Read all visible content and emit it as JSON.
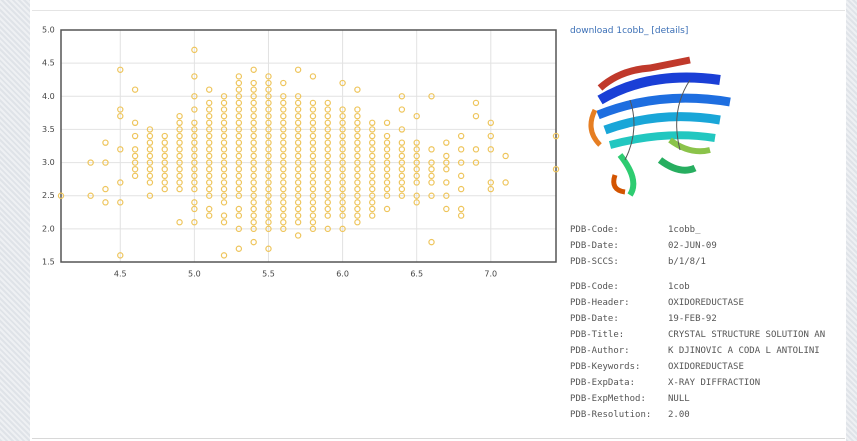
{
  "chart_data": {
    "type": "scatter",
    "color": "#eec55c",
    "grid": true,
    "xlim": [
      4.1,
      7.44
    ],
    "ylim": [
      1.5,
      5.0
    ],
    "xticks": [
      4.5,
      {
        "value": 5,
        "label": "5.0"
      },
      5.5,
      {
        "value": 6,
        "label": "6.0"
      },
      6.5,
      {
        "value": 7,
        "label": "7.0"
      }
    ],
    "yticks": [
      1.5,
      {
        "value": 2,
        "label": "2.0"
      },
      2.5,
      {
        "value": 3,
        "label": "3.0"
      },
      3.5,
      {
        "value": 4,
        "label": "4.0"
      },
      4.5,
      {
        "value": 5,
        "label": "5.0"
      }
    ],
    "points": [
      {
        "x": 4.1,
        "y": [
          2.5
        ]
      },
      {
        "x": 4.3,
        "y": [
          2.5,
          3.0
        ]
      },
      {
        "x": 4.4,
        "y": [
          2.4,
          2.6,
          3.0,
          3.3
        ]
      },
      {
        "x": 4.5,
        "y": [
          1.6,
          2.4,
          2.7,
          3.2,
          3.7,
          3.8,
          4.4
        ]
      },
      {
        "x": 4.6,
        "y": [
          2.8,
          2.9,
          3.0,
          3.1,
          3.2,
          3.4,
          3.6,
          4.1
        ]
      },
      {
        "x": 4.7,
        "y": [
          2.5,
          2.7,
          2.8,
          2.9,
          3.0,
          3.1,
          3.2,
          3.3,
          3.4,
          3.5
        ]
      },
      {
        "x": 4.8,
        "y": [
          2.6,
          2.7,
          2.8,
          2.9,
          3.0,
          3.1,
          3.2,
          3.3,
          3.4
        ]
      },
      {
        "x": 4.9,
        "y": [
          2.1,
          2.6,
          2.7,
          2.8,
          2.9,
          3.0,
          3.1,
          3.2,
          3.3,
          3.4,
          3.5,
          3.6,
          3.7
        ]
      },
      {
        "x": 5.0,
        "y": [
          2.1,
          2.3,
          2.4,
          2.6,
          2.7,
          2.8,
          2.9,
          3.0,
          3.1,
          3.2,
          3.3,
          3.4,
          3.5,
          3.6,
          3.8,
          4.0,
          4.3,
          4.7
        ]
      },
      {
        "x": 5.1,
        "y": [
          2.2,
          2.3,
          2.5,
          2.6,
          2.7,
          2.8,
          2.9,
          3.0,
          3.1,
          3.2,
          3.3,
          3.4,
          3.5,
          3.6,
          3.7,
          3.8,
          3.9,
          4.1
        ]
      },
      {
        "x": 5.2,
        "y": [
          1.6,
          2.1,
          2.2,
          2.4,
          2.5,
          2.6,
          2.7,
          2.8,
          2.9,
          3.0,
          3.1,
          3.2,
          3.3,
          3.4,
          3.5,
          3.6,
          3.7,
          3.8,
          3.9,
          4.0
        ]
      },
      {
        "x": 5.3,
        "y": [
          1.7,
          2.0,
          2.2,
          2.3,
          2.5,
          2.6,
          2.7,
          2.8,
          2.9,
          3.0,
          3.1,
          3.2,
          3.3,
          3.4,
          3.5,
          3.6,
          3.7,
          3.8,
          3.9,
          4.0,
          4.1,
          4.2,
          4.3
        ]
      },
      {
        "x": 5.4,
        "y": [
          1.8,
          2.0,
          2.1,
          2.2,
          2.3,
          2.4,
          2.5,
          2.6,
          2.7,
          2.8,
          2.9,
          3.0,
          3.1,
          3.2,
          3.3,
          3.4,
          3.5,
          3.6,
          3.7,
          3.8,
          3.9,
          4.0,
          4.1,
          4.2,
          4.4
        ]
      },
      {
        "x": 5.5,
        "y": [
          1.7,
          2.0,
          2.1,
          2.2,
          2.3,
          2.4,
          2.5,
          2.6,
          2.7,
          2.8,
          2.9,
          3.0,
          3.1,
          3.2,
          3.3,
          3.4,
          3.5,
          3.6,
          3.7,
          3.8,
          3.9,
          4.0,
          4.1,
          4.2,
          4.3
        ]
      },
      {
        "x": 5.6,
        "y": [
          2.0,
          2.1,
          2.2,
          2.3,
          2.4,
          2.5,
          2.6,
          2.7,
          2.8,
          2.9,
          3.0,
          3.1,
          3.2,
          3.3,
          3.4,
          3.5,
          3.6,
          3.7,
          3.8,
          3.9,
          4.0,
          4.2
        ]
      },
      {
        "x": 5.7,
        "y": [
          1.9,
          2.1,
          2.2,
          2.3,
          2.4,
          2.5,
          2.6,
          2.7,
          2.8,
          2.9,
          3.0,
          3.1,
          3.2,
          3.3,
          3.4,
          3.5,
          3.6,
          3.7,
          3.8,
          3.9,
          4.0,
          4.4
        ]
      },
      {
        "x": 5.8,
        "y": [
          2.0,
          2.1,
          2.2,
          2.3,
          2.4,
          2.5,
          2.6,
          2.7,
          2.8,
          2.9,
          3.0,
          3.1,
          3.2,
          3.3,
          3.4,
          3.5,
          3.6,
          3.7,
          3.8,
          3.9,
          4.3
        ]
      },
      {
        "x": 5.9,
        "y": [
          2.0,
          2.2,
          2.3,
          2.4,
          2.5,
          2.6,
          2.7,
          2.8,
          2.9,
          3.0,
          3.1,
          3.2,
          3.3,
          3.4,
          3.5,
          3.6,
          3.7,
          3.8,
          3.9
        ]
      },
      {
        "x": 6.0,
        "y": [
          2.0,
          2.2,
          2.3,
          2.4,
          2.5,
          2.6,
          2.7,
          2.8,
          2.9,
          3.0,
          3.1,
          3.2,
          3.3,
          3.4,
          3.5,
          3.6,
          3.7,
          3.8,
          4.2
        ]
      },
      {
        "x": 6.1,
        "y": [
          2.1,
          2.2,
          2.3,
          2.4,
          2.5,
          2.6,
          2.7,
          2.8,
          2.9,
          3.0,
          3.1,
          3.2,
          3.3,
          3.4,
          3.5,
          3.6,
          3.7,
          3.8,
          4.1
        ]
      },
      {
        "x": 6.2,
        "y": [
          2.2,
          2.3,
          2.4,
          2.5,
          2.6,
          2.7,
          2.8,
          2.9,
          3.0,
          3.1,
          3.2,
          3.3,
          3.4,
          3.5,
          3.6
        ]
      },
      {
        "x": 6.3,
        "y": [
          2.3,
          2.5,
          2.6,
          2.7,
          2.8,
          2.9,
          3.0,
          3.1,
          3.2,
          3.3,
          3.4,
          3.6
        ]
      },
      {
        "x": 6.4,
        "y": [
          2.5,
          2.6,
          2.7,
          2.8,
          2.9,
          3.0,
          3.1,
          3.2,
          3.3,
          3.5,
          3.8,
          4.0
        ]
      },
      {
        "x": 6.5,
        "y": [
          2.4,
          2.5,
          2.7,
          2.8,
          2.9,
          3.0,
          3.1,
          3.2,
          3.3,
          3.7
        ]
      },
      {
        "x": 6.6,
        "y": [
          1.8,
          2.5,
          2.7,
          2.8,
          2.9,
          3.0,
          3.2,
          4.0
        ]
      },
      {
        "x": 6.7,
        "y": [
          2.3,
          2.5,
          2.7,
          2.9,
          3.0,
          3.1,
          3.3
        ]
      },
      {
        "x": 6.8,
        "y": [
          2.2,
          2.3,
          2.6,
          2.8,
          3.0,
          3.2,
          3.4
        ]
      },
      {
        "x": 6.9,
        "y": [
          3.0,
          3.2,
          3.7,
          3.9
        ]
      },
      {
        "x": 7.0,
        "y": [
          2.6,
          2.7,
          3.2,
          3.4,
          3.6
        ]
      },
      {
        "x": 7.1,
        "y": [
          2.7,
          3.1
        ]
      },
      {
        "x": 7.44,
        "y": [
          2.9,
          3.4
        ]
      }
    ]
  },
  "details": {
    "download": "download 1cobb_",
    "link": "[details]"
  },
  "info": {
    "domain": [
      [
        "PDB-Code:",
        "1cobb_"
      ],
      [
        "PDB-Date:",
        "02-JUN-09"
      ],
      [
        "PDB-SCCS:",
        "b/1/8/1"
      ]
    ],
    "entry": [
      [
        "PDB-Code:",
        "1cob"
      ],
      [
        "PDB-Header:",
        "OXIDOREDUCTASE"
      ],
      [
        "PDB-Date:",
        "19-FEB-92"
      ],
      [
        "PDB-Title:",
        "CRYSTAL STRUCTURE SOLUTION AN"
      ],
      [
        "PDB-Author:",
        "K DJINOVIC A CODA L ANTOLINI"
      ],
      [
        "PDB-Keywords:",
        "OXIDOREDUCTASE"
      ],
      [
        "PDB-ExpData:",
        "X-RAY DIFFRACTION"
      ],
      [
        "PDB-ExpMethod:",
        "NULL"
      ],
      [
        "PDB-Resolution:",
        "2.00"
      ]
    ]
  }
}
